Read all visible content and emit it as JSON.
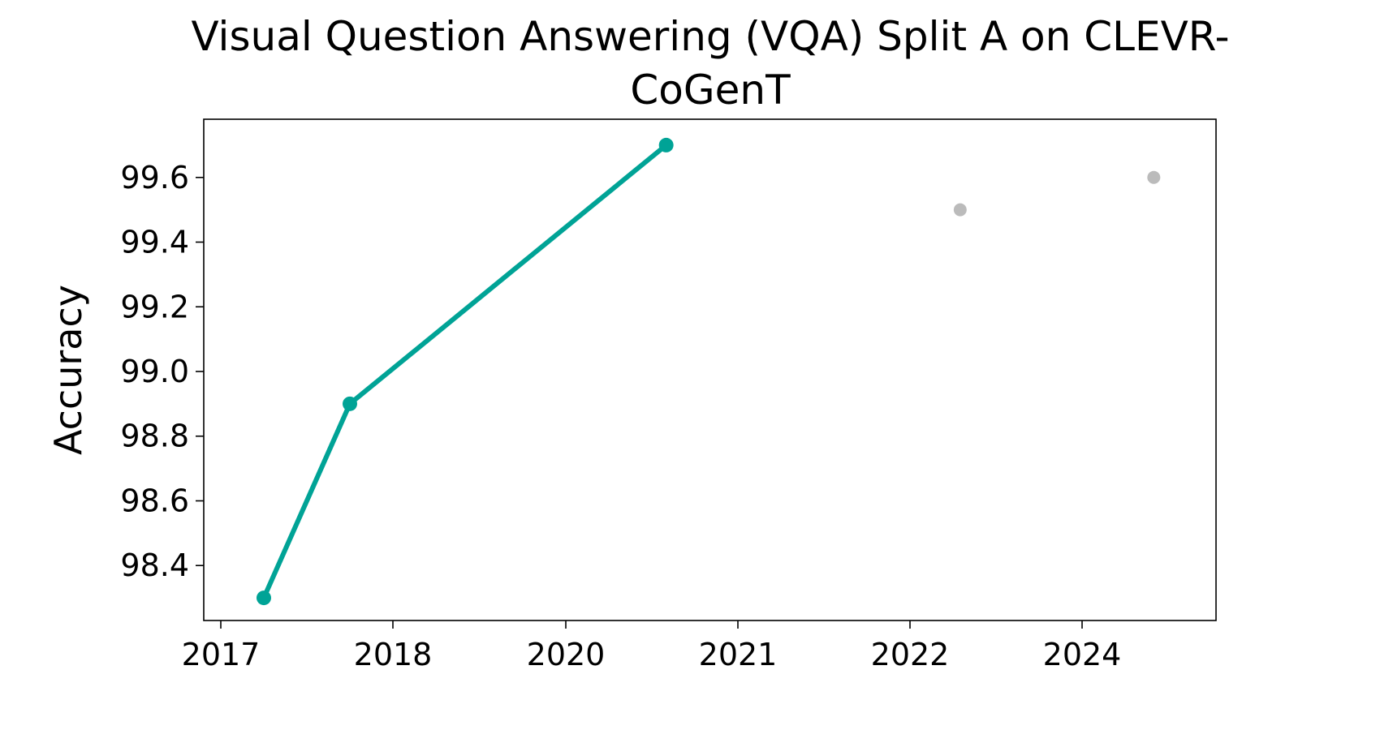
{
  "chart_data": {
    "type": "line",
    "title_line1": "Visual Question Answering (VQA) Split A on CLEVR-",
    "title_line2": "CoGenT",
    "xlabel": "",
    "ylabel": "Accuracy",
    "x_tick_labels": [
      "2017",
      "2018",
      "2020",
      "2021",
      "2022",
      "2024"
    ],
    "y_tick_labels": [
      "98.4",
      "98.6",
      "98.8",
      "99.0",
      "99.2",
      "99.4",
      "99.6"
    ],
    "ylim": [
      98.23,
      99.78
    ],
    "grid": false,
    "series": [
      {
        "color": "#00a396",
        "style": "line-with-markers",
        "points": [
          {
            "x": "2017-03",
            "y": 98.3
          },
          {
            "x": "2017-07",
            "y": 98.9
          },
          {
            "x": "2020-08",
            "y": 99.7
          }
        ]
      },
      {
        "color": "#bbbbbb",
        "style": "markers-only",
        "points": [
          {
            "x": "2022-08",
            "y": 99.5
          },
          {
            "x": "2024-06",
            "y": 99.6
          }
        ]
      }
    ]
  }
}
